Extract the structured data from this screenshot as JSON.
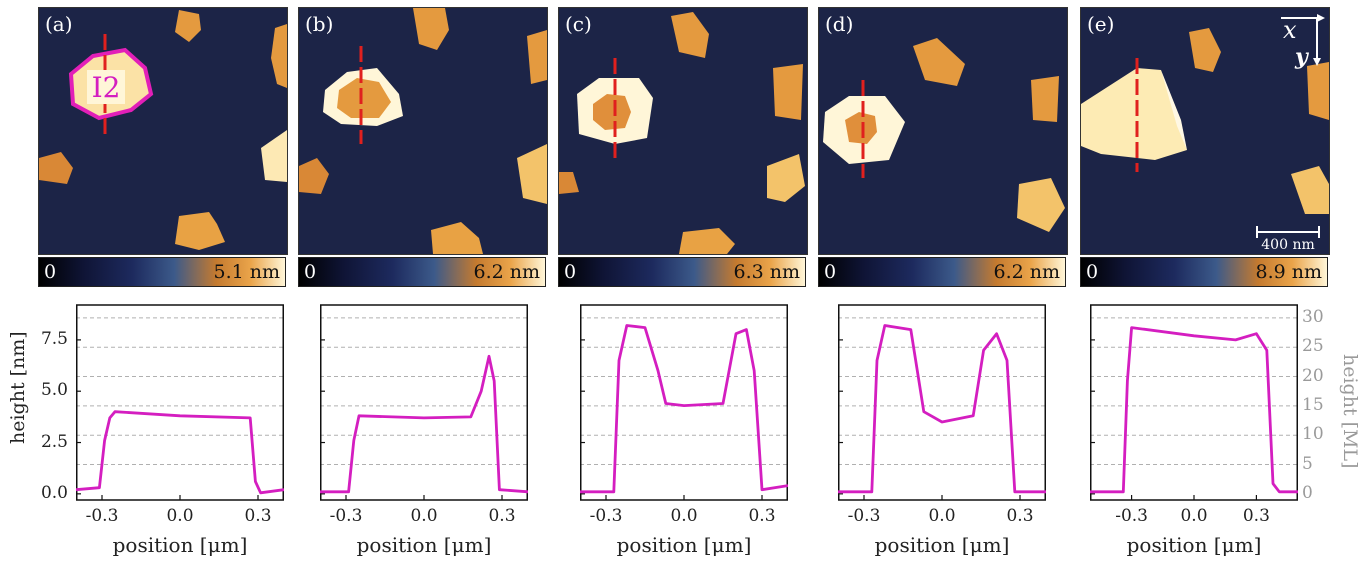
{
  "panels": [
    {
      "letter": "(a)",
      "cbar_min": "0",
      "cbar_max": "5.1 nm",
      "island_label": "I2"
    },
    {
      "letter": "(b)",
      "cbar_min": "0",
      "cbar_max": "6.2 nm"
    },
    {
      "letter": "(c)",
      "cbar_min": "0",
      "cbar_max": "6.3 nm"
    },
    {
      "letter": "(d)",
      "cbar_min": "0",
      "cbar_max": "6.2 nm"
    },
    {
      "letter": "(e)",
      "cbar_min": "0",
      "cbar_max": "8.9 nm",
      "scalebar": "400 nm",
      "axis_x": "x",
      "axis_y": "y"
    }
  ],
  "colors": {
    "trace": "#d41ec0",
    "line_cut": "#e0201e",
    "grid": "#b0b0b0",
    "afm_bg": "#1c2447"
  },
  "axes": {
    "ylabel_left": "height [nm]",
    "ylabel_right": "height [ML]",
    "xlabel": "position [μm]"
  },
  "chart_data": [
    {
      "type": "line",
      "panel": "(a)",
      "xlabel": "position [μm]",
      "ylabel": "height [nm]",
      "xlim": [
        -0.4,
        0.4
      ],
      "ylim": [
        -0.3,
        9.2
      ],
      "grid": "dashed horizontal",
      "xticks": [
        "-0.3",
        "0.0",
        "0.3"
      ],
      "yticks": [
        "0.0",
        "2.5",
        "5.0",
        "7.5"
      ],
      "series": [
        {
          "x": [
            -0.4,
            -0.31,
            -0.29,
            -0.27,
            -0.25,
            0.0,
            0.27,
            0.29,
            0.31,
            0.4
          ],
          "y": [
            0.2,
            0.3,
            2.6,
            3.7,
            4.0,
            3.8,
            3.7,
            0.6,
            0.05,
            0.2
          ]
        }
      ]
    },
    {
      "type": "line",
      "panel": "(b)",
      "xlabel": "position [μm]",
      "xlim": [
        -0.4,
        0.4
      ],
      "ylim": [
        -0.3,
        9.2
      ],
      "grid": "dashed horizontal",
      "xticks": [
        "-0.3",
        "0.0",
        "0.3"
      ],
      "series": [
        {
          "x": [
            -0.4,
            -0.29,
            -0.27,
            -0.25,
            0.0,
            0.18,
            0.22,
            0.25,
            0.27,
            0.29,
            0.4
          ],
          "y": [
            0.1,
            0.1,
            2.6,
            3.8,
            3.7,
            3.75,
            5.0,
            6.7,
            5.5,
            0.2,
            0.1
          ]
        }
      ]
    },
    {
      "type": "line",
      "panel": "(c)",
      "xlabel": "position [μm]",
      "xlim": [
        -0.4,
        0.4
      ],
      "ylim": [
        -0.3,
        9.2
      ],
      "grid": "dashed horizontal",
      "xticks": [
        "-0.3",
        "0.0",
        "0.3"
      ],
      "series": [
        {
          "x": [
            -0.4,
            -0.27,
            -0.25,
            -0.22,
            -0.15,
            -0.1,
            -0.07,
            0.0,
            0.15,
            0.2,
            0.24,
            0.27,
            0.3,
            0.4
          ],
          "y": [
            0.1,
            0.1,
            6.5,
            8.2,
            8.1,
            6.0,
            4.4,
            4.3,
            4.4,
            7.8,
            8.0,
            6.0,
            0.2,
            0.4
          ]
        }
      ]
    },
    {
      "type": "line",
      "panel": "(d)",
      "xlabel": "position [μm]",
      "xlim": [
        -0.4,
        0.4
      ],
      "ylim": [
        -0.3,
        9.2
      ],
      "grid": "dashed horizontal",
      "xticks": [
        "-0.3",
        "0.0",
        "0.3"
      ],
      "series": [
        {
          "x": [
            -0.4,
            -0.27,
            -0.25,
            -0.22,
            -0.12,
            -0.07,
            0.0,
            0.12,
            0.16,
            0.21,
            0.25,
            0.28,
            0.4
          ],
          "y": [
            0.1,
            0.1,
            6.5,
            8.2,
            8.0,
            4.0,
            3.5,
            3.8,
            7.0,
            7.8,
            6.5,
            0.1,
            0.1
          ]
        }
      ]
    },
    {
      "type": "line",
      "panel": "(e)",
      "xlabel": "position [μm]",
      "ylabel_right": "height [ML]",
      "xlim": [
        -0.5,
        0.5
      ],
      "ylim": [
        -0.3,
        9.2
      ],
      "grid": "dashed horizontal",
      "xticks": [
        "-0.3",
        "0.0",
        "0.3"
      ],
      "yticks_right": [
        "0",
        "5",
        "10",
        "15",
        "20",
        "25",
        "30"
      ],
      "series": [
        {
          "x": [
            -0.5,
            -0.34,
            -0.32,
            -0.3,
            0.0,
            0.2,
            0.3,
            0.35,
            0.38,
            0.41,
            0.5
          ],
          "y": [
            0.1,
            0.1,
            5.5,
            8.1,
            7.7,
            7.5,
            7.8,
            7.0,
            0.5,
            0.1,
            0.1
          ]
        }
      ]
    }
  ]
}
